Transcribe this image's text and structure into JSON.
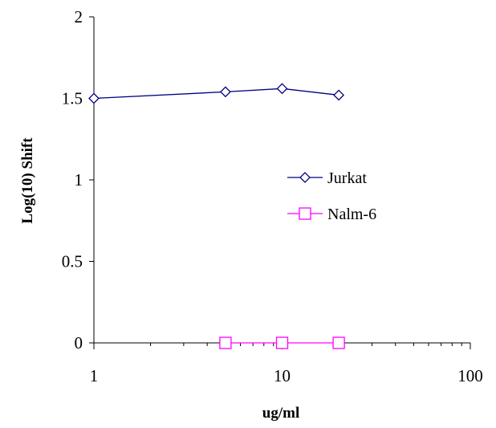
{
  "chart_data": {
    "type": "scatter",
    "title": "",
    "xlabel": "ug/ml",
    "ylabel": "Log(10) Shift",
    "x_scale": "log",
    "xlim": [
      1,
      100
    ],
    "ylim": [
      0,
      2
    ],
    "x_ticks": [
      1,
      10,
      100
    ],
    "x_tick_labels": [
      "1",
      "10",
      "100"
    ],
    "y_ticks": [
      0,
      0.5,
      1,
      1.5,
      2
    ],
    "y_tick_labels": [
      "0",
      "0.5",
      "1",
      "1.5",
      "2"
    ],
    "grid": false,
    "legend_position": "center-right",
    "series": [
      {
        "name": "Jurkat",
        "marker": "diamond",
        "color": "#000080",
        "x": [
          1,
          5,
          10,
          20
        ],
        "y": [
          1.5,
          1.54,
          1.56,
          1.52
        ]
      },
      {
        "name": "Nalm-6",
        "marker": "square",
        "color": "#FF00FF",
        "x": [
          5,
          10,
          20
        ],
        "y": [
          0,
          0,
          0
        ]
      }
    ]
  }
}
